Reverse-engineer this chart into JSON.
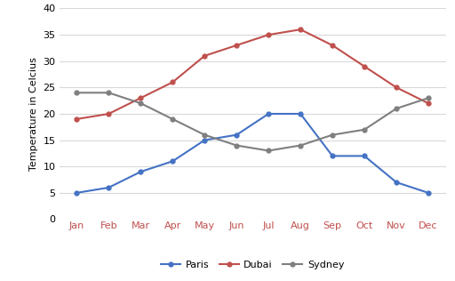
{
  "months": [
    "Jan",
    "Feb",
    "Mar",
    "Apr",
    "May",
    "Jun",
    "Jul",
    "Aug",
    "Sep",
    "Oct",
    "Nov",
    "Dec"
  ],
  "paris": [
    5,
    6,
    9,
    11,
    15,
    16,
    20,
    20,
    12,
    12,
    7,
    5
  ],
  "dubai": [
    19,
    20,
    23,
    26,
    31,
    33,
    35,
    36,
    33,
    29,
    25,
    22
  ],
  "sydney": [
    24,
    24,
    22,
    19,
    16,
    14,
    13,
    14,
    16,
    17,
    21,
    23
  ],
  "paris_color": "#4472C4",
  "dubai_color": "#C0504D",
  "sydney_color": "#7F7F7F",
  "ylabel": "Temperature in Celcius",
  "ylim": [
    0,
    40
  ],
  "yticks": [
    0,
    5,
    10,
    15,
    20,
    25,
    30,
    35,
    40
  ],
  "grid_color": "#D9D9D9",
  "background_color": "#FFFFFF",
  "legend_labels": [
    "Paris",
    "Dubai",
    "Sydney"
  ],
  "marker": "o",
  "marker_size": 3.5,
  "line_width": 1.5,
  "xtick_color": "#C0504D",
  "axis_label_fontsize": 8,
  "tick_fontsize": 8,
  "legend_fontsize": 8
}
